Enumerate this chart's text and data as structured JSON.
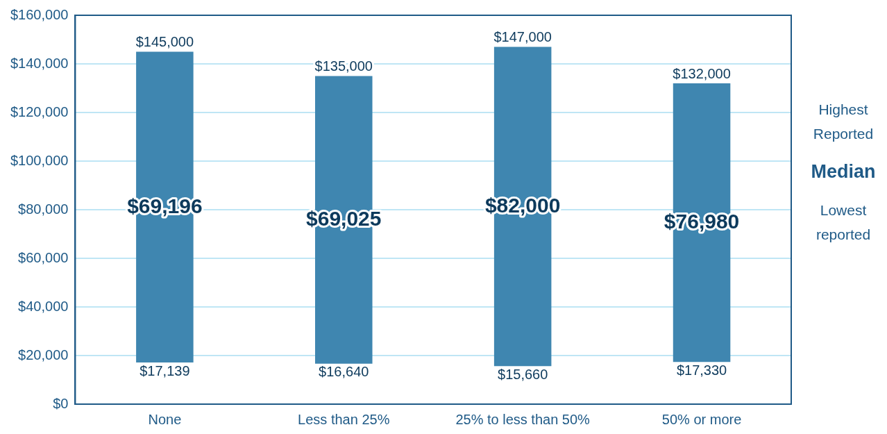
{
  "chart_data": {
    "type": "bar",
    "categories": [
      "None",
      "Less than 25%",
      "25% to less than 50%",
      "50% or more"
    ],
    "base": [
      17139,
      16640,
      15660,
      17330
    ],
    "values": [
      127861,
      118360,
      131340,
      114670
    ],
    "color": "#3f86b0",
    "ylim": [
      0,
      160000
    ],
    "yticks": [
      {
        "value": 0,
        "label": "$0"
      },
      {
        "value": 20000,
        "label": "$20,000"
      },
      {
        "value": 40000,
        "label": "$40,000"
      },
      {
        "value": 60000,
        "label": "$60,000"
      },
      {
        "value": 80000,
        "label": "$80,000"
      },
      {
        "value": 100000,
        "label": "$100,000"
      },
      {
        "value": 120000,
        "label": "$120,000"
      },
      {
        "value": 140000,
        "label": "$140,000"
      },
      {
        "value": 160000,
        "label": "$160,000"
      }
    ],
    "grid": "y",
    "legend": false,
    "annotations": [
      {
        "text": "$145,000",
        "x": "None",
        "y": 145000
      },
      {
        "text": "$135,000",
        "x": "Less than 25%",
        "y": 135000
      },
      {
        "text": "$147,000",
        "x": "25% to less than 50%",
        "y": 147000
      },
      {
        "text": "$132,000",
        "x": "50% or more",
        "y": 132000
      },
      {
        "text": "$17,139",
        "x": "None",
        "y": 17139
      },
      {
        "text": "$16,640",
        "x": "Less than 25%",
        "y": 16640
      },
      {
        "text": "$15,660",
        "x": "25% to less than 50%",
        "y": 15660
      },
      {
        "text": "$17,330",
        "x": "50% or more",
        "y": 17330
      },
      "$69,196",
      "$69,025",
      "$82,000",
      "$76,980",
      "Highest Reported",
      "Median",
      "Lowest reported"
    ]
  }
}
